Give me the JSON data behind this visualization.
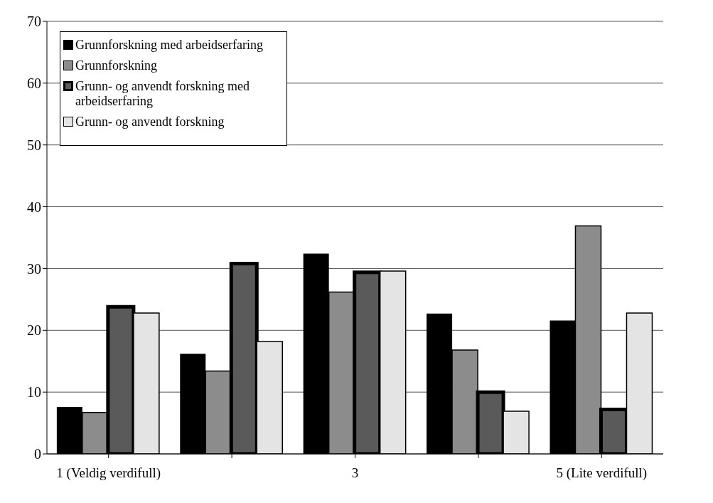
{
  "chart_data": {
    "type": "bar",
    "categories": [
      "1 (Veldig verdifull)",
      null,
      "3",
      null,
      "5 (Lite verdifull)"
    ],
    "series": [
      {
        "name": "Grunnforskning med arbeidserfaring",
        "color": "#000000",
        "values": [
          7.6,
          16.2,
          32.4,
          22.7,
          21.6
        ]
      },
      {
        "name": "Grunnforskning",
        "color": "#8c8c8c",
        "values": [
          6.7,
          13.4,
          26.2,
          16.8,
          36.9
        ]
      },
      {
        "name": "Grunn- og anvendt forskning med arbeidserfaring",
        "color": "#5a5a5a",
        "values": [
          23.8,
          30.8,
          29.4,
          10.0,
          7.2
        ]
      },
      {
        "name": "Grunn- og anvendt forskning",
        "color": "#e4e4e4",
        "values": [
          22.8,
          18.2,
          29.6,
          6.9,
          22.8
        ]
      }
    ],
    "ylim": [
      0,
      70
    ],
    "yticks": [
      0,
      10,
      20,
      30,
      40,
      50,
      60,
      70
    ],
    "grid": "y",
    "legend": "top left"
  }
}
